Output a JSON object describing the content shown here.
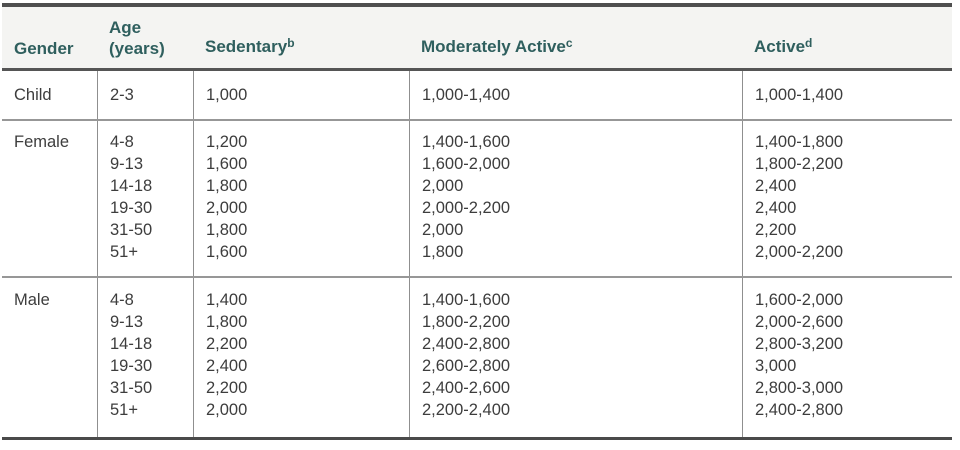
{
  "accent_color": "#2f5f5e",
  "header_bg_color": "#f4f4f2",
  "heavy_rule_color": "#4f4f4f",
  "light_rule_color": "#979797",
  "body_text_color": "#3d3d3d",
  "table": {
    "headers": {
      "gender": "Gender",
      "age_line1": "Age",
      "age_line2": "(years)",
      "sedentary": {
        "label": "Sedentary",
        "sup": "b"
      },
      "moderately_active": {
        "label": "Moderately Active",
        "sup": "c"
      },
      "active": {
        "label": "Active",
        "sup": "d"
      }
    },
    "sections": [
      {
        "gender": "Child",
        "rows": [
          {
            "age": "2-3",
            "sedentary": "1,000",
            "moderately_active": "1,000-1,400",
            "active": "1,000-1,400"
          }
        ]
      },
      {
        "gender": "Female",
        "rows": [
          {
            "age": "4-8",
            "sedentary": "1,200",
            "moderately_active": "1,400-1,600",
            "active": "1,400-1,800"
          },
          {
            "age": "9-13",
            "sedentary": "1,600",
            "moderately_active": "1,600-2,000",
            "active": "1,800-2,200"
          },
          {
            "age": "14-18",
            "sedentary": "1,800",
            "moderately_active": "2,000",
            "active": "2,400"
          },
          {
            "age": "19-30",
            "sedentary": "2,000",
            "moderately_active": "2,000-2,200",
            "active": "2,400"
          },
          {
            "age": "31-50",
            "sedentary": "1,800",
            "moderately_active": "2,000",
            "active": "2,200"
          },
          {
            "age": "51+",
            "sedentary": "1,600",
            "moderately_active": "1,800",
            "active": "2,000-2,200"
          }
        ]
      },
      {
        "gender": "Male",
        "rows": [
          {
            "age": "4-8",
            "sedentary": "1,400",
            "moderately_active": "1,400-1,600",
            "active": "1,600-2,000"
          },
          {
            "age": "9-13",
            "sedentary": "1,800",
            "moderately_active": "1,800-2,200",
            "active": "2,000-2,600"
          },
          {
            "age": "14-18",
            "sedentary": "2,200",
            "moderately_active": "2,400-2,800",
            "active": "2,800-3,200"
          },
          {
            "age": "19-30",
            "sedentary": "2,400",
            "moderately_active": "2,600-2,800",
            "active": "3,000"
          },
          {
            "age": "31-50",
            "sedentary": "2,200",
            "moderately_active": "2,400-2,600",
            "active": "2,800-3,000"
          },
          {
            "age": "51+",
            "sedentary": "2,000",
            "moderately_active": "2,200-2,400",
            "active": "2,400-2,800"
          }
        ]
      }
    ]
  }
}
